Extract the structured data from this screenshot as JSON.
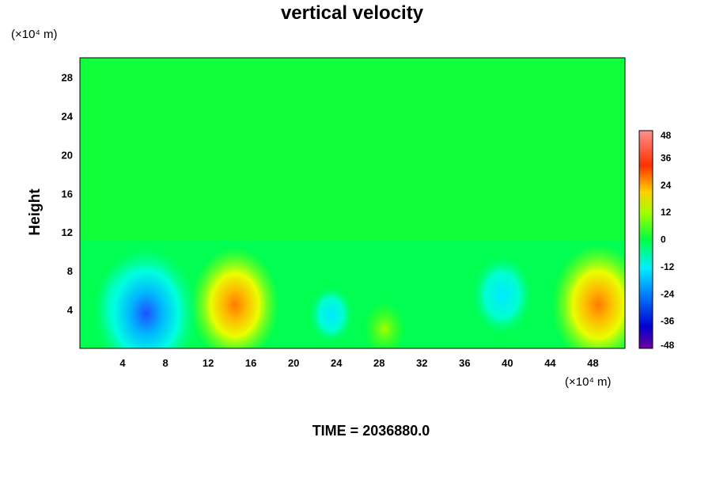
{
  "chart_data": {
    "type": "heatmap",
    "title": "vertical velocity",
    "ylabel": "Height",
    "x_unit_label": "(×10⁴ m)",
    "y_unit_label": "(×10⁴ m)",
    "xlim": [
      0,
      51
    ],
    "ylim": [
      0,
      30
    ],
    "x_ticks": [
      4,
      8,
      12,
      16,
      20,
      24,
      28,
      32,
      36,
      40,
      44,
      48
    ],
    "y_ticks": [
      4,
      8,
      12,
      16,
      20,
      24,
      28
    ],
    "colorbar": {
      "range": [
        -48,
        48
      ],
      "ticks": [
        48,
        36,
        24,
        12,
        0,
        -12,
        -24,
        -36,
        -48
      ]
    },
    "features": [
      {
        "x": 4.5,
        "y": 4.5,
        "value": -18
      },
      {
        "x": 6.2,
        "y": 3.6,
        "value": -34
      },
      {
        "x": 14.5,
        "y": 4.5,
        "value": 26
      },
      {
        "x": 23.5,
        "y": 3.5,
        "value": -9
      },
      {
        "x": 28.5,
        "y": 2.0,
        "value": 8
      },
      {
        "x": 39.5,
        "y": 5.5,
        "value": -16
      },
      {
        "x": 48.5,
        "y": 4.5,
        "value": 28
      }
    ],
    "footer": "TIME = 2036880.0"
  }
}
